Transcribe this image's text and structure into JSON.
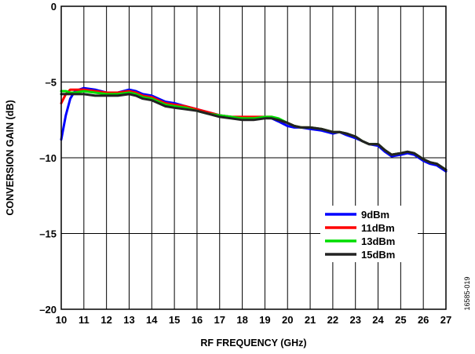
{
  "figure_id": "16585-019",
  "chart_data": {
    "type": "line",
    "title": "",
    "xlabel": "RF FREQUENCY (GHz)",
    "ylabel": "CONVERSION GAIN (dB)",
    "xlim": [
      10,
      27
    ],
    "ylim": [
      -20,
      0
    ],
    "x_ticks": [
      10,
      11,
      12,
      13,
      14,
      15,
      16,
      17,
      18,
      19,
      20,
      21,
      22,
      23,
      24,
      25,
      26,
      27
    ],
    "y_ticks": [
      0,
      -5,
      -10,
      -15,
      -20
    ],
    "grid": true,
    "legend_position": "lower-right",
    "series": [
      {
        "name": "9dBm",
        "color": "#0000ff",
        "x": [
          10.0,
          10.2,
          10.4,
          10.6,
          11.0,
          11.5,
          12.0,
          12.5,
          13.0,
          13.3,
          13.6,
          14.0,
          14.3,
          14.6,
          15.0,
          15.5,
          16.0,
          16.5,
          17.0,
          17.5,
          18.0,
          18.5,
          19.0,
          19.3,
          19.6,
          20.0,
          20.3,
          20.6,
          21.0,
          21.5,
          22.0,
          22.3,
          22.6,
          23.0,
          23.3,
          23.6,
          24.0,
          24.3,
          24.6,
          25.0,
          25.3,
          25.6,
          26.0,
          26.3,
          26.6,
          27.0
        ],
        "values": [
          -8.8,
          -7.2,
          -6.1,
          -5.6,
          -5.4,
          -5.5,
          -5.7,
          -5.7,
          -5.5,
          -5.6,
          -5.8,
          -5.9,
          -6.1,
          -6.3,
          -6.4,
          -6.6,
          -6.8,
          -7.0,
          -7.2,
          -7.3,
          -7.4,
          -7.4,
          -7.3,
          -7.4,
          -7.6,
          -7.9,
          -8.0,
          -8.0,
          -8.1,
          -8.2,
          -8.4,
          -8.3,
          -8.5,
          -8.7,
          -8.9,
          -9.1,
          -9.2,
          -9.6,
          -9.9,
          -9.8,
          -9.7,
          -9.8,
          -10.2,
          -10.4,
          -10.5,
          -10.9
        ]
      },
      {
        "name": "11dBm",
        "color": "#ff0000",
        "x": [
          10.0,
          10.2,
          10.4,
          10.6,
          11.0,
          11.5,
          12.0,
          12.5,
          13.0,
          13.3,
          13.6,
          14.0,
          14.3,
          14.6,
          15.0,
          15.5,
          16.0,
          16.5,
          17.0,
          17.5,
          18.0,
          18.5,
          19.0,
          19.3,
          19.6,
          20.0,
          20.3,
          20.6,
          21.0,
          21.5,
          22.0,
          22.3,
          22.6,
          23.0,
          23.3,
          23.6,
          24.0,
          24.3,
          24.6,
          25.0,
          25.3,
          25.6,
          26.0,
          26.3,
          26.6,
          27.0
        ],
        "values": [
          -6.4,
          -5.8,
          -5.5,
          -5.5,
          -5.5,
          -5.6,
          -5.7,
          -5.7,
          -5.6,
          -5.7,
          -5.9,
          -6.0,
          -6.2,
          -6.4,
          -6.5,
          -6.6,
          -6.8,
          -7.0,
          -7.2,
          -7.3,
          -7.3,
          -7.3,
          -7.3,
          -7.3,
          -7.5,
          -7.7,
          -7.9,
          -8.0,
          -8.0,
          -8.1,
          -8.3,
          -8.3,
          -8.4,
          -8.6,
          -8.9,
          -9.1,
          -9.1,
          -9.5,
          -9.8,
          -9.7,
          -9.6,
          -9.7,
          -10.1,
          -10.3,
          -10.4,
          -10.8
        ]
      },
      {
        "name": "13dBm",
        "color": "#00dd00",
        "x": [
          10.0,
          10.2,
          10.4,
          10.6,
          11.0,
          11.5,
          12.0,
          12.5,
          13.0,
          13.3,
          13.6,
          14.0,
          14.3,
          14.6,
          15.0,
          15.5,
          16.0,
          16.5,
          17.0,
          17.5,
          18.0,
          18.5,
          19.0,
          19.3,
          19.6,
          20.0,
          20.3,
          20.6,
          21.0,
          21.5,
          22.0,
          22.3,
          22.6,
          23.0,
          23.3,
          23.6,
          24.0,
          24.3,
          24.6,
          25.0,
          25.3,
          25.6,
          26.0,
          26.3,
          26.6,
          27.0
        ],
        "values": [
          -5.6,
          -5.6,
          -5.7,
          -5.7,
          -5.6,
          -5.7,
          -5.8,
          -5.8,
          -5.7,
          -5.8,
          -6.0,
          -6.1,
          -6.3,
          -6.5,
          -6.6,
          -6.7,
          -6.9,
          -7.1,
          -7.2,
          -7.3,
          -7.4,
          -7.4,
          -7.3,
          -7.3,
          -7.4,
          -7.7,
          -7.9,
          -8.0,
          -8.0,
          -8.1,
          -8.3,
          -8.3,
          -8.4,
          -8.6,
          -8.9,
          -9.1,
          -9.1,
          -9.5,
          -9.8,
          -9.7,
          -9.6,
          -9.7,
          -10.1,
          -10.3,
          -10.4,
          -10.8
        ]
      },
      {
        "name": "15dBm",
        "color": "#222222",
        "x": [
          10.0,
          10.2,
          10.4,
          10.6,
          11.0,
          11.5,
          12.0,
          12.5,
          13.0,
          13.3,
          13.6,
          14.0,
          14.3,
          14.6,
          15.0,
          15.5,
          16.0,
          16.5,
          17.0,
          17.5,
          18.0,
          18.5,
          19.0,
          19.3,
          19.6,
          20.0,
          20.3,
          20.6,
          21.0,
          21.5,
          22.0,
          22.3,
          22.6,
          23.0,
          23.3,
          23.6,
          24.0,
          24.3,
          24.6,
          25.0,
          25.3,
          25.6,
          26.0,
          26.3,
          26.6,
          27.0
        ],
        "values": [
          -5.8,
          -5.8,
          -5.8,
          -5.8,
          -5.8,
          -5.9,
          -5.9,
          -5.9,
          -5.8,
          -5.9,
          -6.1,
          -6.2,
          -6.4,
          -6.6,
          -6.7,
          -6.8,
          -6.9,
          -7.1,
          -7.3,
          -7.4,
          -7.5,
          -7.5,
          -7.4,
          -7.4,
          -7.5,
          -7.7,
          -7.9,
          -8.0,
          -8.0,
          -8.1,
          -8.3,
          -8.3,
          -8.4,
          -8.6,
          -8.9,
          -9.1,
          -9.1,
          -9.5,
          -9.8,
          -9.7,
          -9.6,
          -9.7,
          -10.1,
          -10.3,
          -10.4,
          -10.8
        ]
      }
    ]
  }
}
